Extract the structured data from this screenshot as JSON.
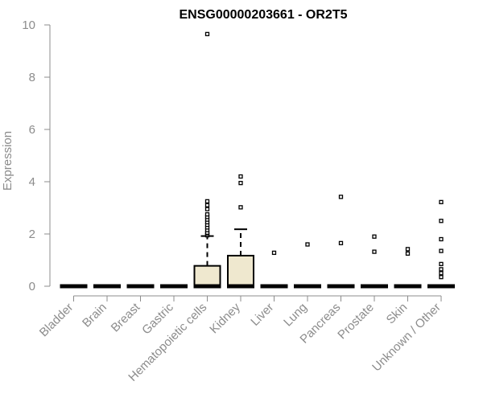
{
  "chart_data": {
    "type": "box",
    "title": "ENSG00000203661 - OR2T5",
    "xlabel": "",
    "ylabel": "Expression",
    "ylim": [
      0,
      10
    ],
    "yticks": [
      0,
      2,
      4,
      6,
      8,
      10
    ],
    "grid": false,
    "box_fill": "#efe8cf",
    "categories": [
      "Bladder",
      "Brain",
      "Breast",
      "Gastric",
      "Hematopoietic cells",
      "Kidney",
      "Liver",
      "Lung",
      "Pancreas",
      "Prostate",
      "Skin",
      "Unknown / Other"
    ],
    "boxes": [
      {
        "min": 0,
        "q1": 0,
        "median": 0,
        "q3": 0,
        "max": 0,
        "outliers": []
      },
      {
        "min": 0,
        "q1": 0,
        "median": 0,
        "q3": 0,
        "max": 0,
        "outliers": []
      },
      {
        "min": 0,
        "q1": 0,
        "median": 0,
        "q3": 0,
        "max": 0,
        "outliers": []
      },
      {
        "min": 0,
        "q1": 0,
        "median": 0,
        "q3": 0,
        "max": 0,
        "outliers": []
      },
      {
        "min": 0,
        "q1": 0,
        "median": 0,
        "q3": 0.78,
        "max": 1.92,
        "outliers": [
          1.95,
          2.0,
          2.05,
          2.15,
          2.25,
          2.35,
          2.45,
          2.55,
          2.65,
          2.75,
          2.95,
          3.1,
          3.25,
          9.65
        ]
      },
      {
        "min": 0,
        "q1": 0,
        "median": 0,
        "q3": 1.17,
        "max": 2.18,
        "outliers": [
          3.02,
          3.95,
          4.2
        ]
      },
      {
        "min": 0,
        "q1": 0,
        "median": 0,
        "q3": 0,
        "max": 0,
        "outliers": [
          1.28
        ]
      },
      {
        "min": 0,
        "q1": 0,
        "median": 0,
        "q3": 0,
        "max": 0,
        "outliers": [
          1.6
        ]
      },
      {
        "min": 0,
        "q1": 0,
        "median": 0,
        "q3": 0,
        "max": 0,
        "outliers": [
          1.65,
          3.42
        ]
      },
      {
        "min": 0,
        "q1": 0,
        "median": 0,
        "q3": 0,
        "max": 0,
        "outliers": [
          1.32,
          1.9
        ]
      },
      {
        "min": 0,
        "q1": 0,
        "median": 0,
        "q3": 0,
        "max": 0,
        "outliers": [
          1.25,
          1.42
        ]
      },
      {
        "min": 0,
        "q1": 0,
        "median": 0,
        "q3": 0,
        "max": 0,
        "outliers": [
          0.35,
          0.5,
          0.65,
          0.85,
          1.35,
          1.8,
          2.5,
          3.22
        ]
      }
    ]
  }
}
